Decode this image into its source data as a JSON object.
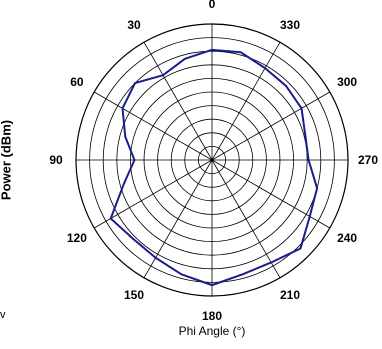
{
  "chart_data": {
    "type": "polar-line",
    "title": "",
    "xlabel": "Phi Angle  (°)",
    "ylabel": "Power  (dBm)",
    "angle_ticks": [
      "0",
      "30",
      "60",
      "90",
      "120",
      "150",
      "180",
      "210",
      "240",
      "270",
      "300",
      "330"
    ],
    "angle_tick_values": [
      0,
      30,
      60,
      90,
      120,
      150,
      180,
      210,
      240,
      270,
      300,
      330
    ],
    "angular_direction": "counterclockwise",
    "zero_direction": "top",
    "radial_rings": 10,
    "radial_range": [
      0,
      10
    ],
    "angular_spokes_deg": 30,
    "grid": true,
    "series": [
      {
        "color": "#1c1c8c",
        "points": [
          {
            "angle": 0,
            "r": 8.1
          },
          {
            "angle": 15,
            "r": 7.7
          },
          {
            "angle": 30,
            "r": 7.2
          },
          {
            "angle": 45,
            "r": 8.0
          },
          {
            "angle": 60,
            "r": 7.6
          },
          {
            "angle": 75,
            "r": 6.6
          },
          {
            "angle": 90,
            "r": 5.7
          },
          {
            "angle": 105,
            "r": 6.7
          },
          {
            "angle": 120,
            "r": 8.6
          },
          {
            "angle": 135,
            "r": 8.2
          },
          {
            "angle": 150,
            "r": 8.3
          },
          {
            "angle": 165,
            "r": 8.7
          },
          {
            "angle": 180,
            "r": 9.2
          },
          {
            "angle": 195,
            "r": 8.7
          },
          {
            "angle": 210,
            "r": 8.7
          },
          {
            "angle": 225,
            "r": 9.2
          },
          {
            "angle": 240,
            "r": 8.3
          },
          {
            "angle": 255,
            "r": 8.0
          },
          {
            "angle": 270,
            "r": 7.1
          },
          {
            "angle": 285,
            "r": 7.1
          },
          {
            "angle": 300,
            "r": 7.6
          },
          {
            "angle": 315,
            "r": 7.7
          },
          {
            "angle": 330,
            "r": 7.8
          },
          {
            "angle": 345,
            "r": 8.2
          }
        ]
      }
    ]
  },
  "corner_mark": "v"
}
